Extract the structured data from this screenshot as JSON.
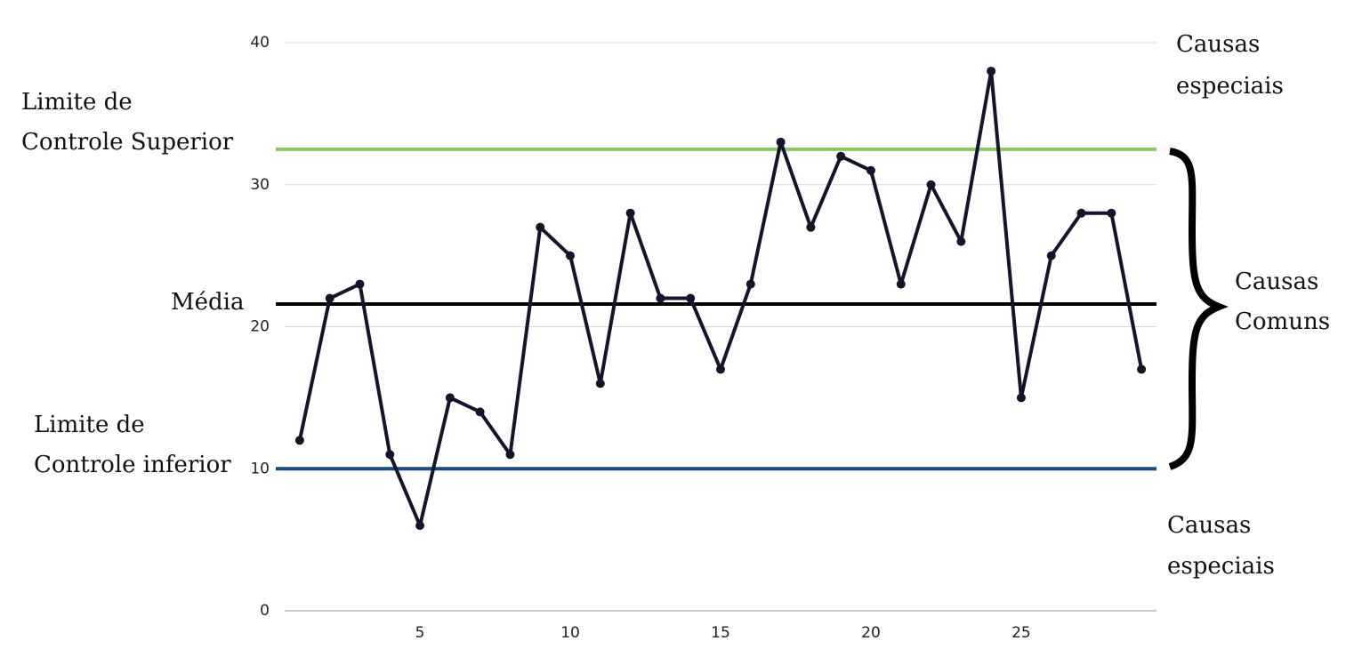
{
  "chart_data": {
    "type": "line",
    "x": [
      1,
      2,
      3,
      4,
      5,
      6,
      7,
      8,
      9,
      10,
      11,
      12,
      13,
      14,
      15,
      16,
      17,
      18,
      19,
      20,
      21,
      22,
      23,
      24,
      25,
      26,
      27,
      28,
      29
    ],
    "series": [
      {
        "color": "#14142b",
        "values": [
          12,
          22,
          23,
          11,
          6,
          15,
          14,
          11,
          27,
          25,
          16,
          28,
          22,
          22,
          17,
          23,
          33,
          27,
          32,
          31,
          23,
          30,
          26,
          38,
          15,
          25,
          28,
          28,
          17
        ]
      }
    ],
    "xlim": [
      0.5,
      29.5
    ],
    "xticks": [
      5,
      10,
      15,
      20,
      25
    ],
    "ylim": [
      0,
      40
    ],
    "yticks": [
      0,
      10,
      20,
      30,
      40
    ],
    "grid": true,
    "reference_lines": [
      {
        "lines": [
          "Limite de",
          "Controle Superior"
        ],
        "value": 32.5,
        "color": "#8cc864"
      },
      {
        "lines": [
          "Média"
        ],
        "value": 21.6,
        "color": "#000000"
      },
      {
        "lines": [
          "Limite de",
          "Controle inferior"
        ],
        "value": 10,
        "color": "#1c4a80"
      }
    ],
    "annotations": [
      {
        "lines": [
          "Causas",
          "especiais"
        ]
      },
      {
        "lines": [
          "Causas",
          "Comuns"
        ]
      },
      {
        "lines": [
          "Causas",
          "especiais"
        ]
      }
    ]
  }
}
